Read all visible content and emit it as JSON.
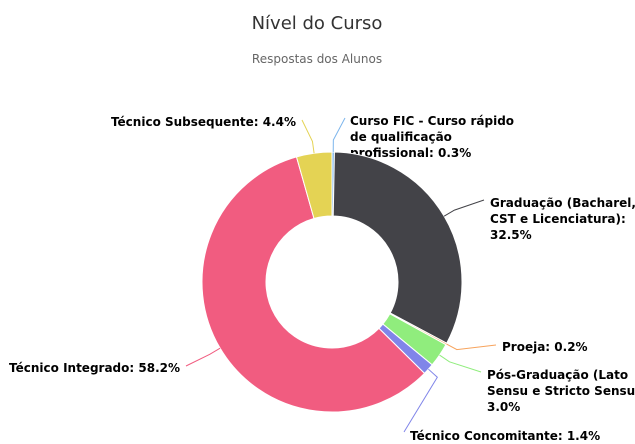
{
  "chart_data": {
    "type": "pie",
    "title": "Nível do Curso",
    "subtitle": "Respostas dos Alunos",
    "values": [
      0.3,
      32.5,
      0.2,
      3.0,
      1.4,
      58.2,
      4.4
    ],
    "value_labels": [
      [
        "Curso FIC - Curso rápido",
        "de qualificação",
        "profissional: 0.3%"
      ],
      [
        "Graduação (Bacharel,",
        "CST e Licenciatura):",
        "32.5%"
      ],
      [
        "Proeja: 0.2%"
      ],
      [
        "Pós-Graduação (Lato",
        "Sensu e Stricto Sensu):",
        "3.0%"
      ],
      [
        "Técnico Concomitante: 1.4%"
      ],
      [
        "Técnico Integrado: 58.2%"
      ],
      [
        "Técnico Subsequente: 4.4%"
      ]
    ],
    "colors": [
      "#7cb5ec",
      "#434348",
      "#f7a35c",
      "#90ed7d",
      "#8085e9",
      "#f15c80",
      "#e4d354"
    ]
  }
}
